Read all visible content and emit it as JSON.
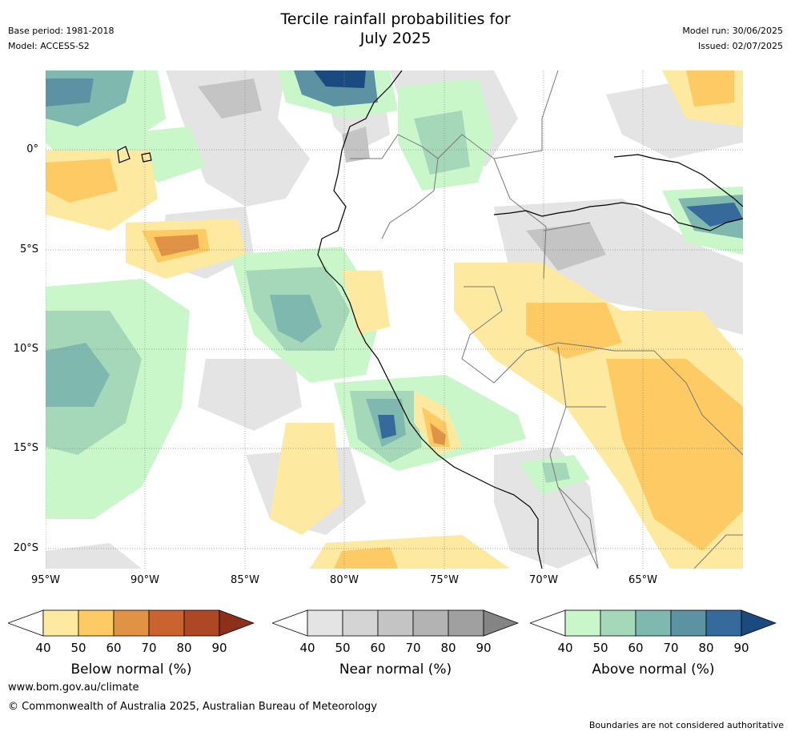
{
  "title_line1": "Tercile rainfall probabilities for",
  "title_line2": "July 2025",
  "base_period": "Base period: 1981-2018",
  "model": "Model: ACCESS-S2",
  "model_run": "Model run: 30/06/2025",
  "issued": "Issued: 02/07/2025",
  "lat_labels": [
    "0°",
    "5°S",
    "10°S",
    "15°S",
    "20°S"
  ],
  "lon_labels": [
    "95°W",
    "90°W",
    "85°W",
    "80°W",
    "75°W",
    "70°W",
    "65°W"
  ],
  "legends": [
    {
      "title": "Below normal (%)",
      "ticks": [
        "40",
        "50",
        "60",
        "70",
        "80",
        "90"
      ],
      "colors": [
        "#fdeaa0",
        "#fdca63",
        "#e19345",
        "#cb6331",
        "#ae4726",
        "#8c2f1b"
      ]
    },
    {
      "title": "Near normal (%)",
      "ticks": [
        "40",
        "50",
        "60",
        "70",
        "80",
        "90"
      ],
      "colors": [
        "#e4e4e4",
        "#d4d4d4",
        "#c4c4c4",
        "#b3b3b3",
        "#a0a0a0",
        "#848484"
      ]
    },
    {
      "title": "Above normal (%)",
      "ticks": [
        "40",
        "50",
        "60",
        "70",
        "80",
        "90"
      ],
      "colors": [
        "#c9f7c9",
        "#a5d8b9",
        "#7fb8af",
        "#5c92a2",
        "#356a9a",
        "#1b4a80"
      ]
    }
  ],
  "website": "www.bom.gov.au/climate",
  "copyright": "© Commonwealth of Australia 2025, Australian Bureau of Meteorology",
  "disclaimer": "Boundaries are not considered authoritative"
}
